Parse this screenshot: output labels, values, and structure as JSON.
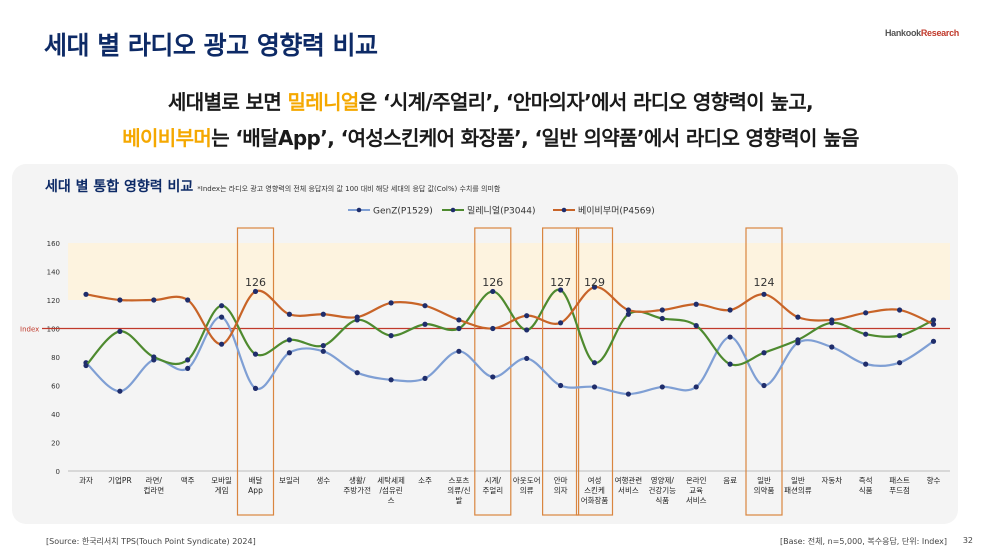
{
  "slide": {
    "title": "세대 별 라디오 광고 영향력 비교",
    "brand_part1": "Hankook",
    "brand_part2": "Research",
    "headline1_pre": "세대별로 보면 ",
    "headline1_highlight": "밀레니얼",
    "headline1_post": "은 ‘시계/주얼리’, ‘안마의자’에서 라디오 영향력이 높고,",
    "headline2_highlight": "베이비부머",
    "headline2_post": "는 ‘배달App’, ‘여성스킨케어 화장품’, ‘일반 의약품’에서 라디오 영향력이 높음",
    "chart_title": "세대 별 통합 영향력 비교",
    "chart_note": "*Index는 라디오 광고 영향력의 전체 응답자의 값 100 대비 해당 세대의 응답 값(Col%) 수치를 의미함",
    "source": "[Source: 한국리서치 TPS(Touch Point Syndicate) 2024]",
    "base": "[Base: 전체, n=5,000, 복수응답, 단위: Index]",
    "page_number": "32"
  },
  "chart_data": {
    "type": "line",
    "ylim": [
      0,
      160
    ],
    "yticks": [
      0,
      20,
      40,
      60,
      80,
      100,
      120,
      140,
      160
    ],
    "index_line": {
      "value": 100,
      "label": "Index",
      "color": "#c0392b"
    },
    "background_band": {
      "from": 120,
      "to": 160,
      "color": "#fdf3df"
    },
    "categories": [
      [
        "과자"
      ],
      [
        "기업PR"
      ],
      [
        "라면/",
        "컵라면"
      ],
      [
        "맥주"
      ],
      [
        "모바일",
        "게임"
      ],
      [
        "배달",
        "App"
      ],
      [
        "보일러"
      ],
      [
        "생수"
      ],
      [
        "생활/",
        "주방가전"
      ],
      [
        "세탁세제",
        "/섬유린",
        "스"
      ],
      [
        "소주"
      ],
      [
        "스포츠",
        "의류/신",
        "발"
      ],
      [
        "시계/",
        "주얼리"
      ],
      [
        "아웃도어",
        "의류"
      ],
      [
        "안마",
        "의자"
      ],
      [
        "여성",
        "스킨케",
        "어화장품"
      ],
      [
        "여행관련",
        "서비스"
      ],
      [
        "영양제/",
        "건강기능",
        "식품"
      ],
      [
        "온라인",
        "교육",
        "서비스"
      ],
      [
        "음료"
      ],
      [
        "일반",
        "의약품"
      ],
      [
        "일반",
        "패션의류"
      ],
      [
        "자동차"
      ],
      [
        "즉석",
        "식품"
      ],
      [
        "패스트",
        "푸드점"
      ],
      [
        "향수"
      ]
    ],
    "highlighted": [
      5,
      12,
      14,
      15,
      20
    ],
    "annotations": [
      {
        "index": 5,
        "label": "126"
      },
      {
        "index": 12,
        "label": "126"
      },
      {
        "index": 14,
        "label": "127"
      },
      {
        "index": 15,
        "label": "129"
      },
      {
        "index": 20,
        "label": "124"
      }
    ],
    "series": [
      {
        "name": "GenZ(P1529)",
        "color": "#7f9fd4",
        "values": [
          76,
          56,
          78,
          72,
          108,
          58,
          83,
          84,
          69,
          64,
          65,
          84,
          66,
          79,
          60,
          59,
          54,
          59,
          59,
          94,
          60,
          90,
          87,
          75,
          76,
          91
        ]
      },
      {
        "name": "밀레니얼(P3044)",
        "color": "#4e8a2f",
        "values": [
          74,
          98,
          80,
          78,
          116,
          82,
          92,
          88,
          106,
          95,
          103,
          100,
          126,
          99,
          127,
          76,
          110,
          107,
          102,
          75,
          83,
          92,
          104,
          96,
          95,
          106
        ]
      },
      {
        "name": "베이비부머(P4569)",
        "color": "#c86428",
        "values": [
          124,
          120,
          120,
          120,
          89,
          126,
          110,
          110,
          108,
          118,
          116,
          106,
          100,
          109,
          104,
          129,
          113,
          113,
          117,
          113,
          124,
          108,
          106,
          111,
          113,
          103
        ]
      }
    ]
  }
}
